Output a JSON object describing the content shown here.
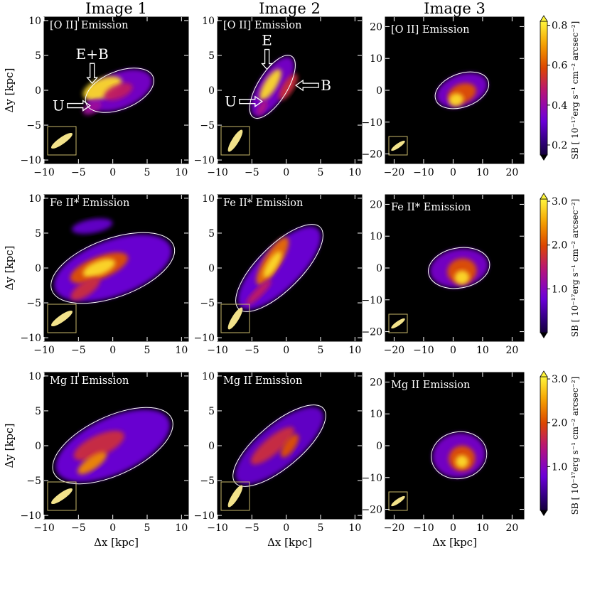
{
  "figure": {
    "column_titles": [
      "Image 1",
      "Image 2",
      "Image 3"
    ],
    "xlabel": "Δx [kpc]",
    "ylabel": "Δy [kpc]"
  },
  "colors": {
    "background": "#000000",
    "contour": "#ffffff",
    "psf": "#f2e28a",
    "psf_box": "#c8b96a",
    "label": "#ffffff"
  },
  "chart_data": [
    {
      "type": "heatmap",
      "row": "O II",
      "panel_label": "[O II] Emission",
      "colorbar": {
        "ticks": [
          "0.2",
          "0.4",
          "0.6",
          "0.8"
        ],
        "range": [
          0.15,
          0.82
        ],
        "label": "SB [ 10⁻¹⁷erg s⁻¹ cm⁻² arcsec⁻²]"
      },
      "panels": [
        {
          "image": "Image 1",
          "xlim": [
            -10,
            11
          ],
          "ylim": [
            -10.5,
            10.5
          ],
          "xticks": [
            -10,
            -5,
            0,
            5,
            10
          ],
          "yticks": [
            -10,
            -5,
            0,
            5,
            10
          ],
          "annotations": [
            {
              "text": "E+B",
              "arrow": "down",
              "x": -3.0,
              "y": 1.0
            },
            {
              "text": "U",
              "arrow": "right",
              "x": -3.3,
              "y": -2.2
            }
          ],
          "psf_angle_deg": -35
        },
        {
          "image": "Image 2",
          "xlim": [
            -10,
            11
          ],
          "ylim": [
            -10.5,
            10.5
          ],
          "xticks": [
            -10,
            -5,
            0,
            5,
            10
          ],
          "yticks": [
            -10,
            -5,
            0,
            5,
            10
          ],
          "annotations": [
            {
              "text": "E",
              "arrow": "down",
              "x": -2.8,
              "y": 3.0
            },
            {
              "text": "U",
              "arrow": "right",
              "x": -3.5,
              "y": -1.6
            },
            {
              "text": "B",
              "arrow": "left",
              "x": 1.4,
              "y": 0.7
            }
          ],
          "psf_angle_deg": -58
        },
        {
          "image": "Image 3",
          "xlim": [
            -23,
            24
          ],
          "ylim": [
            -23,
            23
          ],
          "xticks": [
            -20,
            -10,
            0,
            10,
            20
          ],
          "yticks": [
            -20,
            -10,
            0,
            10,
            20
          ],
          "annotations": [],
          "psf_angle_deg": -35
        }
      ]
    },
    {
      "type": "heatmap",
      "row": "Fe II*",
      "panel_label": "Fe II* Emission",
      "colorbar": {
        "ticks": [
          "1.0",
          "2.0",
          "3.0"
        ],
        "range": [
          0.0,
          3.05
        ],
        "label": "SB [ 10⁻¹⁷erg s⁻¹ cm⁻² arcsec⁻²]"
      },
      "panels": [
        {
          "image": "Image 1",
          "xlim": [
            -10,
            11
          ],
          "ylim": [
            -10.5,
            10.5
          ],
          "xticks": [
            -10,
            -5,
            0,
            5,
            10
          ],
          "yticks": [
            -10,
            -5,
            0,
            5,
            10
          ],
          "annotations": [],
          "psf_angle_deg": -35
        },
        {
          "image": "Image 2",
          "xlim": [
            -10,
            11
          ],
          "ylim": [
            -10.5,
            10.5
          ],
          "xticks": [
            -10,
            -5,
            0,
            5,
            10
          ],
          "yticks": [
            -10,
            -5,
            0,
            5,
            10
          ],
          "annotations": [],
          "psf_angle_deg": -58
        },
        {
          "image": "Image 3",
          "xlim": [
            -23,
            24
          ],
          "ylim": [
            -23,
            23
          ],
          "xticks": [
            -20,
            -10,
            0,
            10,
            20
          ],
          "yticks": [
            -20,
            -10,
            0,
            10,
            20
          ],
          "annotations": [],
          "psf_angle_deg": -35
        }
      ]
    },
    {
      "type": "heatmap",
      "row": "Mg II",
      "panel_label": "Mg II Emission",
      "colorbar": {
        "ticks": [
          "1.0",
          "2.0",
          "3.0"
        ],
        "range": [
          0.0,
          3.05
        ],
        "label": "SB [ 10⁻¹⁷erg s⁻¹ cm⁻² arcsec⁻²]"
      },
      "panels": [
        {
          "image": "Image 1",
          "xlim": [
            -10,
            11
          ],
          "ylim": [
            -10.5,
            10.5
          ],
          "xticks": [
            -10,
            -5,
            0,
            5,
            10
          ],
          "yticks": [
            -10,
            -5,
            0,
            5,
            10
          ],
          "annotations": [],
          "psf_angle_deg": -35
        },
        {
          "image": "Image 2",
          "xlim": [
            -10,
            11
          ],
          "ylim": [
            -10.5,
            10.5
          ],
          "xticks": [
            -10,
            -5,
            0,
            5,
            10
          ],
          "yticks": [
            -10,
            -5,
            0,
            5,
            10
          ],
          "annotations": [],
          "psf_angle_deg": -58
        },
        {
          "image": "Image 3",
          "xlim": [
            -23,
            24
          ],
          "ylim": [
            -23,
            23
          ],
          "xticks": [
            -20,
            -10,
            0,
            10,
            20
          ],
          "yticks": [
            -20,
            -10,
            0,
            10,
            20
          ],
          "annotations": [],
          "psf_angle_deg": -35
        }
      ]
    }
  ]
}
